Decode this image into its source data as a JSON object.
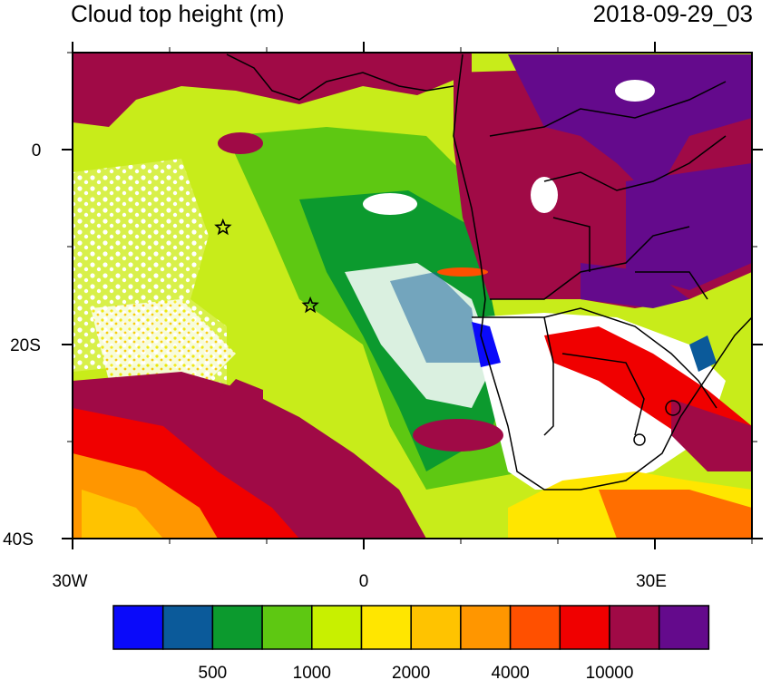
{
  "title_left": "Cloud top height (m)",
  "title_right": "2018-09-29_03",
  "axes": {
    "x_labels": [
      "30W",
      "0",
      "30E"
    ],
    "y_labels": [
      "0",
      "20S",
      "40S"
    ]
  },
  "colorbar": {
    "colors": [
      "#0a0afa",
      "#0b5a9a",
      "#0c9a2e",
      "#5ec812",
      "#c8f000",
      "#ffe600",
      "#ffc300",
      "#ff9600",
      "#ff5000",
      "#f00000",
      "#a00a46",
      "#640a8c"
    ],
    "labels": [
      "500",
      "1000",
      "2000",
      "4000",
      "10000"
    ]
  },
  "markers": [
    {
      "name": "star-marker-1",
      "lon": -14.5,
      "lat": -8
    },
    {
      "name": "star-marker-2",
      "lon": -5.5,
      "lat": -16
    }
  ]
}
